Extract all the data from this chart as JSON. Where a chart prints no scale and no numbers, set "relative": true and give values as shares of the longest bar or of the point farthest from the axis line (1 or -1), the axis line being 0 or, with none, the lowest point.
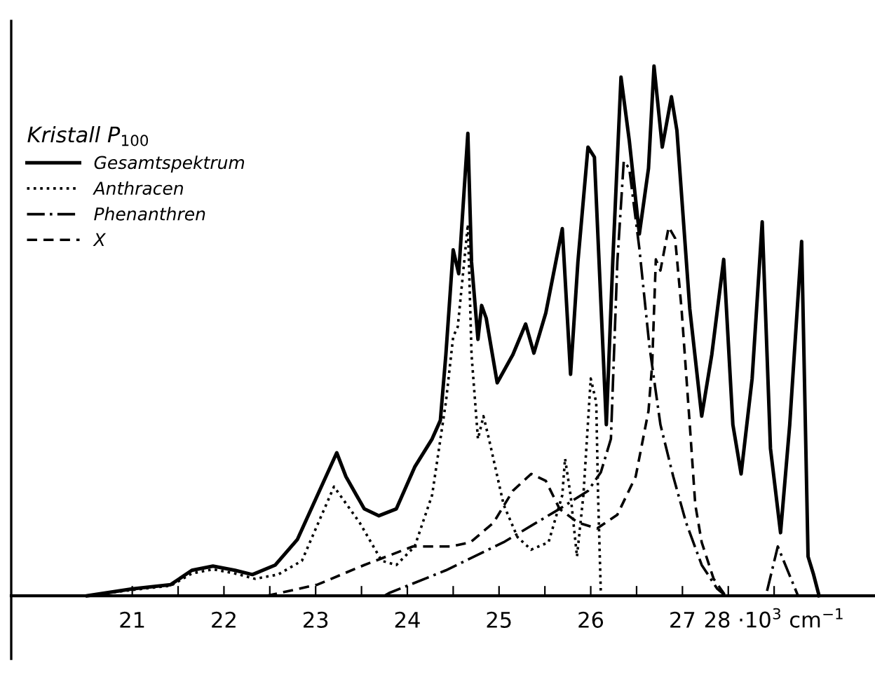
{
  "chart_data": {
    "type": "line",
    "relative": true,
    "legend": "top left",
    "legend_title": "Kristall P$_{100}$",
    "grid": false,
    "marker": "none",
    "xlim": [
      19.68,
      29.1
    ],
    "xticks": [
      21,
      {
        "value": 21.5,
        "label": null
      },
      22,
      {
        "value": 22.5,
        "label": null
      },
      23,
      {
        "value": 23.5,
        "label": null
      },
      24,
      {
        "value": 24.5,
        "label": null
      },
      25,
      {
        "value": 25.5,
        "label": null
      },
      26,
      {
        "value": 26.5,
        "label": null
      },
      27,
      {
        "value": 27.5,
        "label": null
      },
      {
        "value": 28,
        "label": "28 ·10$^{3}$ cm$^{−1}$"
      }
    ],
    "series": [
      {
        "name": "Gesamtspektrum",
        "color": "#000000",
        "line_style": "solid",
        "x": [
          20.51,
          21.0,
          21.42,
          21.65,
          21.88,
          22.12,
          22.31,
          22.56,
          22.8,
          23.23,
          23.33,
          23.53,
          23.69,
          23.88,
          24.08,
          24.27,
          24.36,
          24.42,
          24.5,
          24.56,
          24.66,
          24.7,
          24.77,
          24.81,
          24.86,
          24.98,
          25.15,
          25.29,
          25.38,
          25.51,
          25.69,
          25.78,
          25.86,
          25.97,
          26.04,
          26.17,
          26.24,
          26.33,
          26.42,
          26.53,
          26.63,
          26.69,
          26.78,
          26.88,
          26.94,
          27.08,
          27.21,
          27.32,
          27.45,
          27.55,
          27.64,
          27.76,
          27.87,
          27.96,
          28.07,
          28.17,
          28.3,
          28.37,
          28.43,
          28.49
        ],
        "values": [
          0,
          0.013,
          0.021,
          0.048,
          0.056,
          0.048,
          0.04,
          0.058,
          0.106,
          0.27,
          0.225,
          0.164,
          0.151,
          0.164,
          0.243,
          0.296,
          0.331,
          0.455,
          0.653,
          0.608,
          0.873,
          0.63,
          0.484,
          0.548,
          0.524,
          0.402,
          0.455,
          0.513,
          0.458,
          0.534,
          0.693,
          0.418,
          0.63,
          0.847,
          0.828,
          0.323,
          0.63,
          0.979,
          0.86,
          0.683,
          0.807,
          1.0,
          0.847,
          0.942,
          0.878,
          0.542,
          0.339,
          0.455,
          0.635,
          0.323,
          0.23,
          0.41,
          0.706,
          0.278,
          0.119,
          0.323,
          0.669,
          0.074,
          0.04,
          0
        ]
      },
      {
        "name": "Anthracen",
        "color": "#000000",
        "line_style": "dotted",
        "x": [
          20.51,
          21.0,
          21.42,
          21.65,
          21.88,
          22.12,
          22.34,
          22.59,
          22.85,
          23.2,
          23.48,
          23.72,
          23.88,
          24.08,
          24.27,
          24.42,
          24.5,
          24.55,
          24.66,
          24.7,
          24.77,
          24.83,
          24.89,
          25.05,
          25.2,
          25.35,
          25.54,
          25.69,
          25.72,
          25.78,
          25.85,
          25.92,
          26.0,
          26.06,
          26.08,
          26.11
        ],
        "values": [
          0,
          0.011,
          0.019,
          0.042,
          0.05,
          0.042,
          0.032,
          0.04,
          0.066,
          0.206,
          0.138,
          0.066,
          0.058,
          0.093,
          0.19,
          0.365,
          0.489,
          0.508,
          0.701,
          0.455,
          0.296,
          0.339,
          0.296,
          0.172,
          0.111,
          0.087,
          0.101,
          0.19,
          0.259,
          0.19,
          0.074,
          0.19,
          0.41,
          0.365,
          0.19,
          0.005
        ]
      },
      {
        "name": "Phenanthren",
        "color": "#000000",
        "line_style": "dashdot",
        "x": [
          23.75,
          23.8,
          24.42,
          25.05,
          25.66,
          25.97,
          26.11,
          26.22,
          26.29,
          26.36,
          26.42,
          26.53,
          26.64,
          26.76,
          26.9,
          27.04,
          27.21,
          27.38,
          27.47,
          27.91,
          28.04,
          28.26
        ],
        "values": [
          0,
          0.005,
          0.048,
          0.101,
          0.164,
          0.198,
          0.233,
          0.296,
          0.63,
          0.82,
          0.807,
          0.656,
          0.471,
          0.323,
          0.225,
          0.138,
          0.058,
          0.013,
          0,
          0,
          0.093,
          0
        ]
      },
      {
        "name": "X",
        "color": "#000000",
        "line_style": "dashed",
        "x": [
          22.47,
          23.02,
          23.53,
          24.06,
          24.47,
          24.69,
          24.94,
          25.15,
          25.35,
          25.51,
          25.66,
          25.86,
          26.07,
          26.29,
          26.49,
          26.63,
          26.67,
          26.71,
          26.76,
          26.85,
          26.92,
          26.99,
          27.08,
          27.14,
          27.21,
          27.34,
          27.47
        ],
        "values": [
          0,
          0.021,
          0.058,
          0.093,
          0.093,
          0.101,
          0.138,
          0.198,
          0.23,
          0.217,
          0.164,
          0.138,
          0.127,
          0.153,
          0.225,
          0.349,
          0.437,
          0.635,
          0.614,
          0.696,
          0.675,
          0.542,
          0.323,
          0.172,
          0.101,
          0.032,
          0
        ]
      }
    ]
  }
}
